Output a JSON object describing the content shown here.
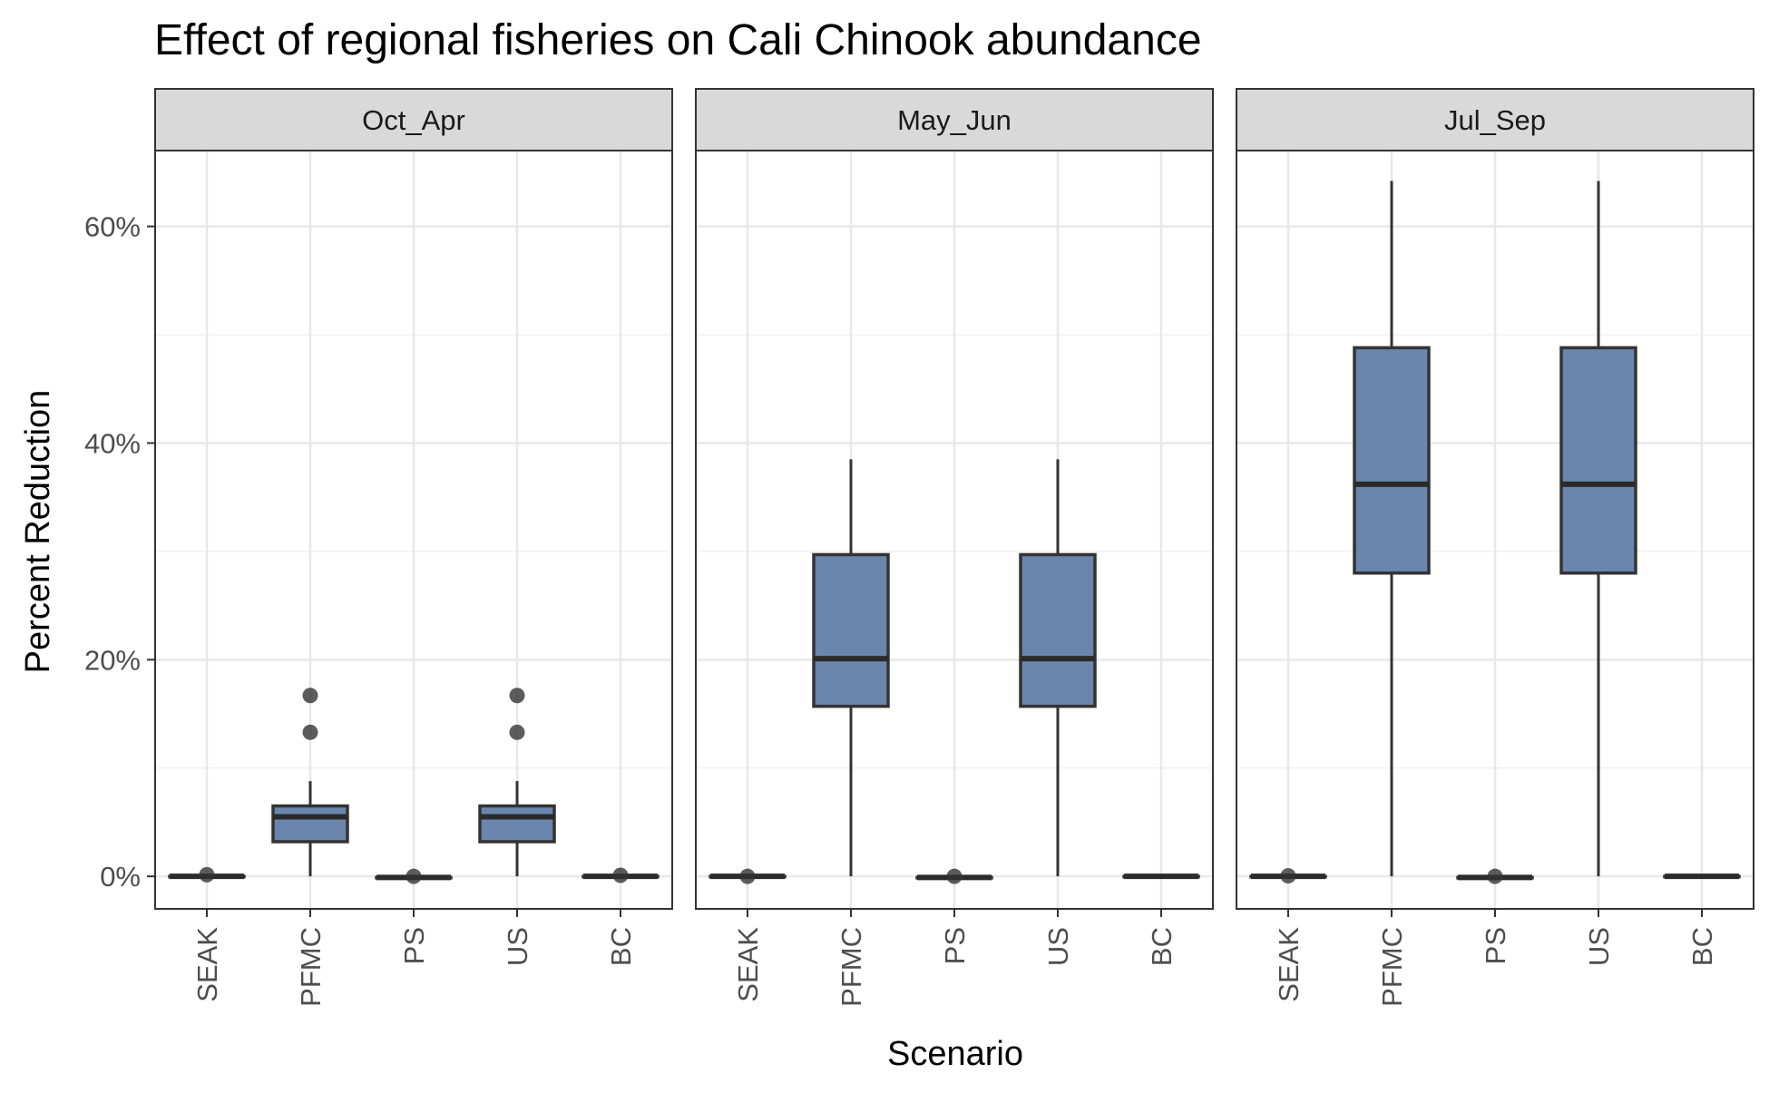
{
  "chart_data": {
    "type": "boxplot",
    "title": "Effect of regional fisheries on Cali Chinook abundance",
    "xlabel": "Scenario",
    "ylabel": "Percent Reduction",
    "ylim": [
      -3,
      67
    ],
    "y_ticks": [
      0,
      20,
      40,
      60
    ],
    "y_tick_labels": [
      "0%",
      "20%",
      "40%",
      "60%"
    ],
    "y_minor_ticks": [
      10,
      30,
      50
    ],
    "grid": true,
    "box_color": "#6b86ae",
    "outline_color": "#333333",
    "strip_color": "#d9d9d9",
    "categories": [
      "SEAK",
      "PFMC",
      "PS",
      "US",
      "BC"
    ],
    "panels": [
      {
        "name": "Oct_Apr",
        "boxes": [
          {
            "category": "SEAK",
            "whisker_low": 0,
            "q1": 0,
            "median": 0,
            "q3": 0,
            "whisker_high": 0,
            "outliers": [
              0.15
            ]
          },
          {
            "category": "PFMC",
            "whisker_low": 0,
            "q1": 3.2,
            "median": 5.5,
            "q3": 6.5,
            "whisker_high": 8.8,
            "outliers": [
              13.3,
              16.7
            ]
          },
          {
            "category": "PS",
            "whisker_low": -0.1,
            "q1": -0.1,
            "median": -0.1,
            "q3": -0.1,
            "whisker_high": -0.1,
            "outliers": [
              0
            ]
          },
          {
            "category": "US",
            "whisker_low": 0,
            "q1": 3.2,
            "median": 5.5,
            "q3": 6.5,
            "whisker_high": 8.8,
            "outliers": [
              13.3,
              16.7
            ]
          },
          {
            "category": "BC",
            "whisker_low": 0,
            "q1": 0,
            "median": 0,
            "q3": 0,
            "whisker_high": 0,
            "outliers": [
              0.1
            ]
          }
        ]
      },
      {
        "name": "May_Jun",
        "boxes": [
          {
            "category": "SEAK",
            "whisker_low": 0,
            "q1": 0,
            "median": 0,
            "q3": 0,
            "whisker_high": 0,
            "outliers": [
              0
            ]
          },
          {
            "category": "PFMC",
            "whisker_low": 0,
            "q1": 15.7,
            "median": 20.1,
            "q3": 29.7,
            "whisker_high": 38.5,
            "outliers": []
          },
          {
            "category": "PS",
            "whisker_low": -0.1,
            "q1": -0.1,
            "median": -0.1,
            "q3": -0.1,
            "whisker_high": -0.1,
            "outliers": [
              0
            ]
          },
          {
            "category": "US",
            "whisker_low": 0,
            "q1": 15.7,
            "median": 20.1,
            "q3": 29.7,
            "whisker_high": 38.5,
            "outliers": []
          },
          {
            "category": "BC",
            "whisker_low": 0,
            "q1": 0,
            "median": 0,
            "q3": 0,
            "whisker_high": 0,
            "outliers": []
          }
        ]
      },
      {
        "name": "Jul_Sep",
        "boxes": [
          {
            "category": "SEAK",
            "whisker_low": 0,
            "q1": 0,
            "median": 0,
            "q3": 0,
            "whisker_high": 0,
            "outliers": [
              0.05
            ]
          },
          {
            "category": "PFMC",
            "whisker_low": 0,
            "q1": 28,
            "median": 36.2,
            "q3": 48.8,
            "whisker_high": 64.2,
            "outliers": []
          },
          {
            "category": "PS",
            "whisker_low": -0.1,
            "q1": -0.1,
            "median": -0.1,
            "q3": -0.1,
            "whisker_high": -0.1,
            "outliers": [
              0
            ]
          },
          {
            "category": "US",
            "whisker_low": 0,
            "q1": 28,
            "median": 36.2,
            "q3": 48.8,
            "whisker_high": 64.2,
            "outliers": []
          },
          {
            "category": "BC",
            "whisker_low": 0,
            "q1": 0,
            "median": 0,
            "q3": 0,
            "whisker_high": 0,
            "outliers": []
          }
        ]
      }
    ]
  }
}
